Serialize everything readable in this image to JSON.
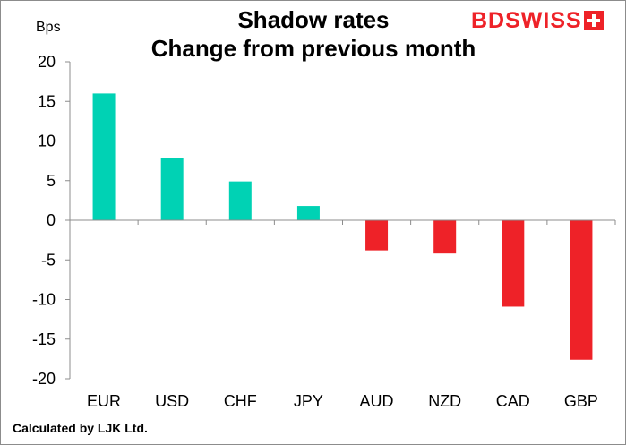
{
  "chart_data": {
    "type": "bar",
    "title": [
      "Shadow rates",
      "Change from previous month"
    ],
    "ylabel": "Bps",
    "categories": [
      "EUR",
      "USD",
      "CHF",
      "JPY",
      "AUD",
      "NZD",
      "CAD",
      "GBP"
    ],
    "values": [
      16.0,
      7.8,
      4.9,
      1.8,
      -3.8,
      -4.2,
      -10.9,
      -17.6
    ],
    "ylim": [
      -20,
      20
    ],
    "yticks": [
      20,
      15,
      10,
      5,
      0,
      -5,
      -10,
      -15,
      -20
    ],
    "grid": false,
    "legend": "none",
    "colors": {
      "positive": "#00d2b4",
      "negative": "#ee2228",
      "axis": "#8c8c8c"
    }
  },
  "logo": {
    "text": "BDSWISS",
    "color": "#ee2228"
  },
  "footnote": "Calculated by LJK Ltd."
}
